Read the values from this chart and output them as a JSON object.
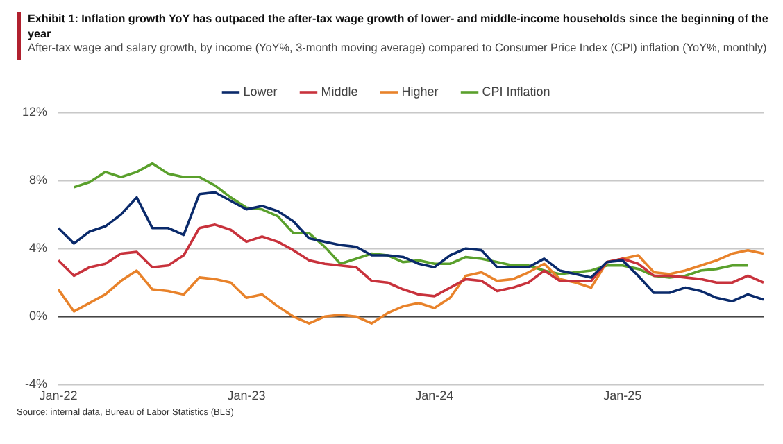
{
  "chart_data": {
    "type": "line",
    "title": "Exhibit 1: Inflation growth YoY has outpaced the after-tax wage growth of lower- and middle-income households since the beginning of the year",
    "subtitle": "After-tax wage and salary growth, by income (YoY%, 3-month moving average) compared to Consumer Price Index (CPI) inflation (YoY%, monthly)",
    "annotations": [
      "Source: internal data, Bureau of Labor Statistics (BLS)"
    ],
    "x": [
      "2022-01",
      "2022-02",
      "2022-03",
      "2022-04",
      "2022-05",
      "2022-06",
      "2022-07",
      "2022-08",
      "2022-09",
      "2022-10",
      "2022-11",
      "2022-12",
      "2023-01",
      "2023-02",
      "2023-03",
      "2023-04",
      "2023-05",
      "2023-06",
      "2023-07",
      "2023-08",
      "2023-09",
      "2023-10",
      "2023-11",
      "2023-12",
      "2024-01",
      "2024-02",
      "2024-03",
      "2024-04",
      "2024-05",
      "2024-06",
      "2024-07",
      "2024-08",
      "2024-09",
      "2024-10",
      "2024-11",
      "2024-12",
      "2025-01",
      "2025-02",
      "2025-03",
      "2025-04",
      "2025-05",
      "2025-06",
      "2025-07",
      "2025-08",
      "2025-09",
      "2025-10"
    ],
    "series": [
      {
        "name": "Lower",
        "color": "#0a2a6b",
        "values": [
          5.2,
          4.3,
          5.0,
          5.3,
          6.0,
          7.0,
          5.2,
          5.2,
          4.8,
          7.2,
          7.3,
          6.8,
          6.3,
          6.5,
          6.2,
          5.6,
          4.6,
          4.4,
          4.2,
          4.1,
          3.6,
          3.6,
          3.5,
          3.1,
          2.9,
          3.6,
          4.0,
          3.9,
          2.9,
          2.9,
          2.9,
          3.4,
          2.7,
          2.5,
          2.3,
          3.2,
          3.3,
          2.4,
          1.4,
          1.4,
          1.7,
          1.5,
          1.1,
          0.9,
          1.3,
          1.0
        ]
      },
      {
        "name": "Middle",
        "color": "#c8323c",
        "values": [
          3.3,
          2.4,
          2.9,
          3.1,
          3.7,
          3.8,
          2.9,
          3.0,
          3.6,
          5.2,
          5.4,
          5.1,
          4.4,
          4.7,
          4.4,
          3.9,
          3.3,
          3.1,
          3.0,
          2.9,
          2.1,
          2.0,
          1.6,
          1.3,
          1.2,
          1.7,
          2.2,
          2.1,
          1.5,
          1.7,
          2.0,
          2.7,
          2.1,
          2.1,
          2.1,
          3.2,
          3.4,
          3.1,
          2.4,
          2.4,
          2.3,
          2.2,
          2.0,
          2.0,
          2.4,
          2.0
        ]
      },
      {
        "name": "Higher",
        "color": "#e8822a",
        "values": [
          1.6,
          0.3,
          0.8,
          1.3,
          2.1,
          2.7,
          1.6,
          1.5,
          1.3,
          2.3,
          2.2,
          2.0,
          1.1,
          1.3,
          0.6,
          0.0,
          -0.4,
          0.0,
          0.1,
          0.0,
          -0.4,
          0.2,
          0.6,
          0.8,
          0.5,
          1.1,
          2.4,
          2.6,
          2.1,
          2.2,
          2.6,
          3.1,
          2.2,
          2.0,
          1.7,
          3.2,
          3.4,
          3.6,
          2.6,
          2.5,
          2.7,
          3.0,
          3.3,
          3.7,
          3.9,
          3.7
        ]
      },
      {
        "name": "CPI Inflation",
        "color": "#5aa02c",
        "values": [
          null,
          7.6,
          7.9,
          8.5,
          8.2,
          8.5,
          9.0,
          8.4,
          8.2,
          8.2,
          7.7,
          7.0,
          6.4,
          6.3,
          5.9,
          4.9,
          4.9,
          4.1,
          3.1,
          3.4,
          3.7,
          3.6,
          3.2,
          3.3,
          3.1,
          3.1,
          3.5,
          3.4,
          3.2,
          3.0,
          3.0,
          2.7,
          2.5,
          2.6,
          2.7,
          3.0,
          3.0,
          2.8,
          2.4,
          2.3,
          2.4,
          2.7,
          2.8,
          3.0,
          3.0,
          null
        ]
      }
    ],
    "xlim": [
      "2022-01",
      "2025-10"
    ],
    "xticks": [
      {
        "value": "2022-01",
        "label": "Jan-22"
      },
      {
        "value": "2023-01",
        "label": "Jan-23"
      },
      {
        "value": "2024-01",
        "label": "Jan-24"
      },
      {
        "value": "2025-01",
        "label": "Jan-25"
      }
    ],
    "ylim": [
      -4,
      12
    ],
    "yticks": [
      {
        "value": -4,
        "label": "-4%"
      },
      {
        "value": 0,
        "label": "0%"
      },
      {
        "value": 4,
        "label": "4%"
      },
      {
        "value": 8,
        "label": "8%"
      },
      {
        "value": 12,
        "label": "12%"
      }
    ],
    "ref_lines": [
      {
        "axis": "y",
        "value": 0,
        "color": "#444444"
      }
    ],
    "grid": "y",
    "legend": "top",
    "marker": "none",
    "line_style": "solid"
  }
}
